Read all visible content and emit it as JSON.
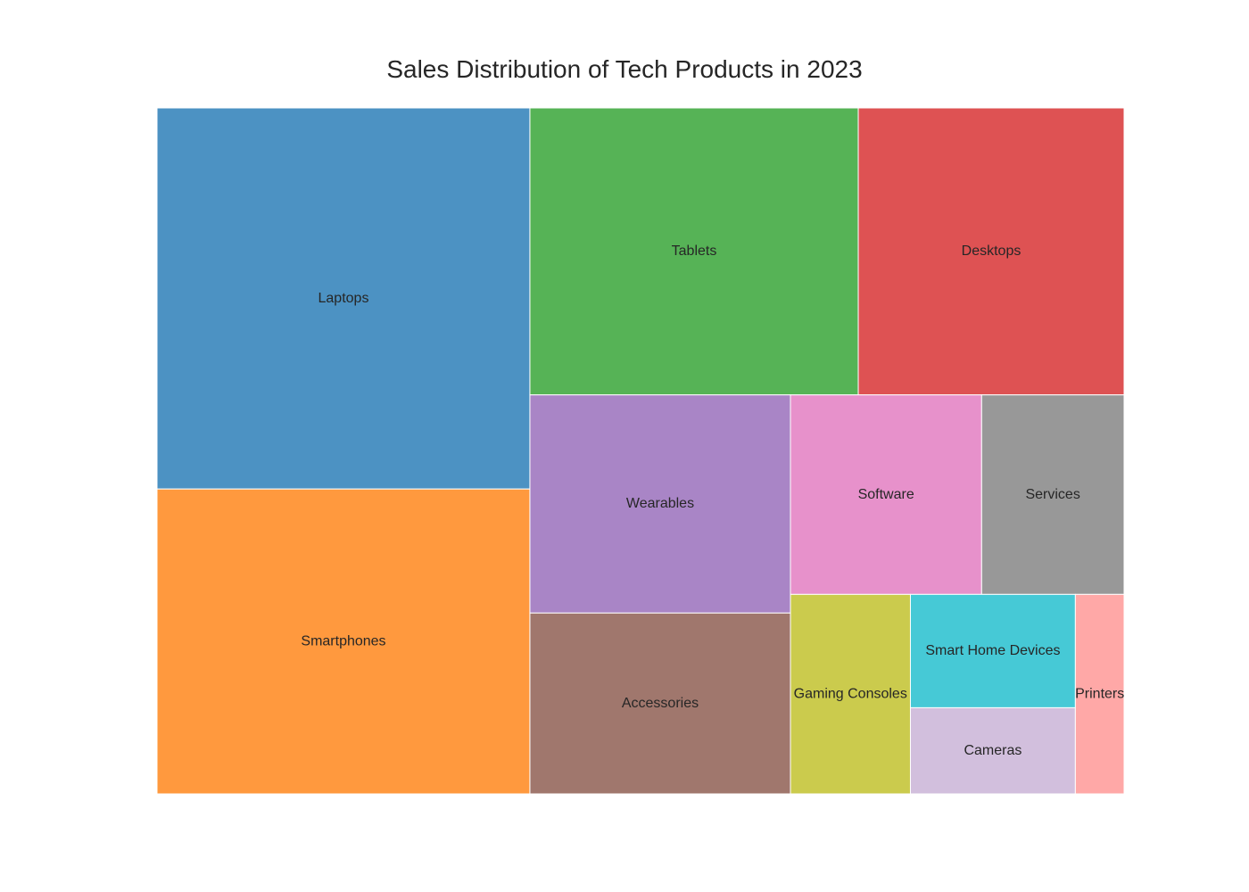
{
  "chart_data": {
    "type": "treemap",
    "title": "Sales Distribution of Tech Products in 2023",
    "items": [
      {
        "label": "Laptops",
        "value": 19.0,
        "color": "#4c92c3"
      },
      {
        "label": "Smartphones",
        "value": 15.2,
        "color": "#ff993e"
      },
      {
        "label": "Tablets",
        "value": 12.6,
        "color": "#56b356"
      },
      {
        "label": "Desktops",
        "value": 10.2,
        "color": "#de5253"
      },
      {
        "label": "Wearables",
        "value": 7.6,
        "color": "#a985c6"
      },
      {
        "label": "Accessories",
        "value": 6.3,
        "color": "#a0776d"
      },
      {
        "label": "Software",
        "value": 5.1,
        "color": "#e791cb"
      },
      {
        "label": "Services",
        "value": 3.8,
        "color": "#989898"
      },
      {
        "label": "Gaming Consoles",
        "value": 3.2,
        "color": "#cbcb4d"
      },
      {
        "label": "Smart Home Devices",
        "value": 2.5,
        "color": "#46c9d6"
      },
      {
        "label": "Cameras",
        "value": 1.9,
        "color": "#d2bfdd"
      },
      {
        "label": "Printers",
        "value": 1.3,
        "color": "#ffa8a7"
      }
    ]
  }
}
